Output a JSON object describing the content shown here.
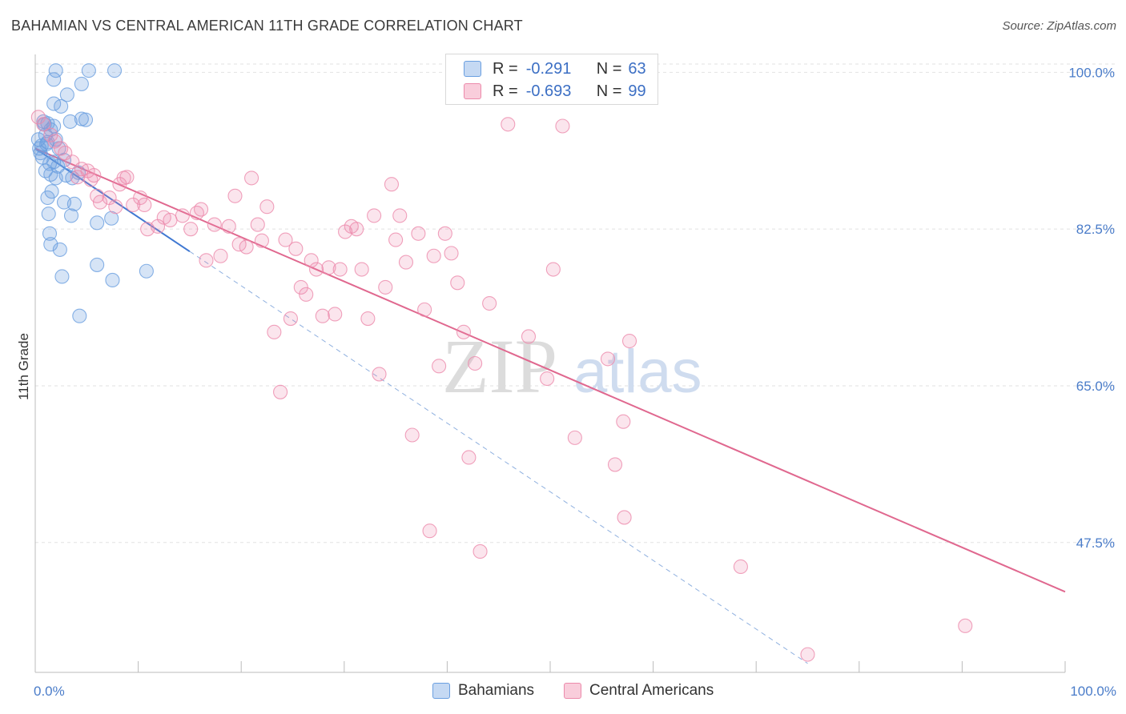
{
  "title": "BAHAMIAN VS CENTRAL AMERICAN 11TH GRADE CORRELATION CHART",
  "source": "Source: ZipAtlas.com",
  "watermark_zip": "ZIP",
  "watermark_atlas": "atlas",
  "legend": {
    "r_label": "R =",
    "n_label": "N =",
    "rows": [
      {
        "r": "-0.291",
        "n": "63",
        "color": "#6a9fe0"
      },
      {
        "r": "-0.693",
        "n": "99",
        "color": "#ec8aab"
      }
    ]
  },
  "bottom_legend": [
    "Bahamians",
    "Central Americans"
  ],
  "chart_data": {
    "type": "scatter",
    "title": "BAHAMIAN VS CENTRAL AMERICAN 11TH GRADE CORRELATION CHART",
    "xlabel": "",
    "ylabel": "11th Grade",
    "xlim": [
      0,
      100
    ],
    "ylim": [
      33,
      102
    ],
    "x_tick_labels": [
      "0.0%",
      "100.0%"
    ],
    "y_ticks": [
      47.5,
      65.0,
      82.5,
      100.0
    ],
    "y_tick_labels": [
      "47.5%",
      "65.0%",
      "82.5%",
      "100.0%"
    ],
    "grid": true,
    "legend_position": "top-center",
    "series": [
      {
        "name": "Bahamians",
        "color": "#6a9fe0",
        "trend": {
          "x": [
            0,
            15
          ],
          "y": [
            91.5,
            80.0
          ]
        },
        "trend_extension": {
          "x": [
            15,
            75
          ],
          "y": [
            80.0,
            34.0
          ]
        },
        "points": [
          [
            0.3,
            92.5
          ],
          [
            0.6,
            91.8
          ],
          [
            0.9,
            94.2
          ],
          [
            1.0,
            93.0
          ],
          [
            1.2,
            92.2
          ],
          [
            0.5,
            91.0
          ],
          [
            0.7,
            90.5
          ],
          [
            1.4,
            89.8
          ],
          [
            1.8,
            90.0
          ],
          [
            2.2,
            89.5
          ],
          [
            2.8,
            90.2
          ],
          [
            1.0,
            89.0
          ],
          [
            1.5,
            88.6
          ],
          [
            2.0,
            88.2
          ],
          [
            3.0,
            88.5
          ],
          [
            3.6,
            88.2
          ],
          [
            4.2,
            88.8
          ],
          [
            1.6,
            86.7
          ],
          [
            1.2,
            86.0
          ],
          [
            2.8,
            85.5
          ],
          [
            3.8,
            85.3
          ],
          [
            1.3,
            84.2
          ],
          [
            3.5,
            84.0
          ],
          [
            6.0,
            83.2
          ],
          [
            7.4,
            83.7
          ],
          [
            1.4,
            82.0
          ],
          [
            1.5,
            80.8
          ],
          [
            2.4,
            80.2
          ],
          [
            6.0,
            78.5
          ],
          [
            10.8,
            77.8
          ],
          [
            2.6,
            77.2
          ],
          [
            7.5,
            76.8
          ],
          [
            4.3,
            72.8
          ],
          [
            1.2,
            94.3
          ],
          [
            1.8,
            94.0
          ],
          [
            3.4,
            94.5
          ],
          [
            4.5,
            94.8
          ],
          [
            4.9,
            94.7
          ],
          [
            0.8,
            94.5
          ],
          [
            1.5,
            93.6
          ],
          [
            0.4,
            91.5
          ],
          [
            2.0,
            92.5
          ],
          [
            1.8,
            96.5
          ],
          [
            2.5,
            96.2
          ],
          [
            3.1,
            97.5
          ],
          [
            4.5,
            98.7
          ],
          [
            1.8,
            99.2
          ],
          [
            2.0,
            100.2
          ],
          [
            5.2,
            100.2
          ],
          [
            7.7,
            100.2
          ],
          [
            1.1,
            92.0
          ],
          [
            2.3,
            91.5
          ]
        ]
      },
      {
        "name": "Central Americans",
        "color": "#ec8aab",
        "trend": {
          "x": [
            0,
            100
          ],
          "y": [
            91.5,
            42.0
          ]
        },
        "points": [
          [
            0.3,
            95.0
          ],
          [
            0.8,
            94.2
          ],
          [
            1.5,
            93.0
          ],
          [
            1.9,
            92.3
          ],
          [
            2.5,
            91.5
          ],
          [
            2.9,
            91.0
          ],
          [
            3.6,
            90.0
          ],
          [
            4.5,
            89.2
          ],
          [
            5.1,
            89.0
          ],
          [
            5.7,
            88.5
          ],
          [
            4.1,
            88.3
          ],
          [
            5.4,
            88.0
          ],
          [
            6.0,
            86.2
          ],
          [
            6.3,
            85.5
          ],
          [
            7.2,
            86.0
          ],
          [
            7.8,
            85.0
          ],
          [
            8.2,
            87.5
          ],
          [
            8.6,
            88.2
          ],
          [
            8.9,
            88.3
          ],
          [
            9.5,
            85.2
          ],
          [
            10.2,
            86.0
          ],
          [
            10.6,
            85.2
          ],
          [
            10.9,
            82.5
          ],
          [
            11.9,
            82.8
          ],
          [
            12.5,
            83.8
          ],
          [
            13.1,
            83.5
          ],
          [
            14.3,
            84.0
          ],
          [
            15.1,
            82.5
          ],
          [
            15.7,
            84.3
          ],
          [
            16.1,
            84.7
          ],
          [
            16.6,
            79.0
          ],
          [
            17.4,
            83.0
          ],
          [
            18.0,
            79.5
          ],
          [
            18.8,
            82.8
          ],
          [
            19.4,
            86.2
          ],
          [
            19.8,
            80.8
          ],
          [
            20.5,
            80.5
          ],
          [
            21.0,
            88.2
          ],
          [
            21.6,
            83.0
          ],
          [
            22.0,
            81.2
          ],
          [
            22.5,
            85.0
          ],
          [
            23.2,
            71.0
          ],
          [
            23.8,
            64.3
          ],
          [
            24.3,
            81.3
          ],
          [
            24.8,
            72.5
          ],
          [
            25.3,
            80.3
          ],
          [
            25.8,
            76.0
          ],
          [
            26.3,
            75.2
          ],
          [
            26.8,
            79.0
          ],
          [
            27.3,
            78.0
          ],
          [
            27.9,
            72.8
          ],
          [
            28.5,
            78.2
          ],
          [
            29.1,
            73.0
          ],
          [
            29.6,
            78.0
          ],
          [
            30.1,
            82.2
          ],
          [
            30.7,
            82.8
          ],
          [
            31.2,
            82.5
          ],
          [
            31.7,
            78.0
          ],
          [
            32.3,
            72.5
          ],
          [
            32.9,
            84.0
          ],
          [
            33.4,
            66.3
          ],
          [
            34.0,
            76.0
          ],
          [
            34.6,
            87.5
          ],
          [
            35.0,
            81.3
          ],
          [
            35.4,
            84.0
          ],
          [
            36.0,
            78.8
          ],
          [
            36.6,
            59.5
          ],
          [
            37.2,
            82.0
          ],
          [
            37.8,
            73.5
          ],
          [
            38.3,
            48.8
          ],
          [
            38.7,
            79.5
          ],
          [
            39.2,
            67.2
          ],
          [
            39.8,
            82.0
          ],
          [
            40.4,
            79.8
          ],
          [
            41.0,
            76.5
          ],
          [
            41.6,
            71.0
          ],
          [
            42.1,
            57.0
          ],
          [
            42.7,
            67.5
          ],
          [
            43.2,
            46.5
          ],
          [
            44.1,
            74.2
          ],
          [
            45.9,
            94.2
          ],
          [
            47.9,
            70.5
          ],
          [
            49.7,
            65.8
          ],
          [
            50.3,
            78.0
          ],
          [
            51.2,
            94.0
          ],
          [
            52.4,
            59.2
          ],
          [
            55.6,
            68.0
          ],
          [
            56.3,
            56.2
          ],
          [
            57.1,
            61.0
          ],
          [
            57.2,
            50.3
          ],
          [
            57.7,
            70.0
          ],
          [
            68.5,
            44.8
          ],
          [
            75.0,
            35.0
          ],
          [
            90.3,
            38.2
          ]
        ]
      }
    ]
  }
}
